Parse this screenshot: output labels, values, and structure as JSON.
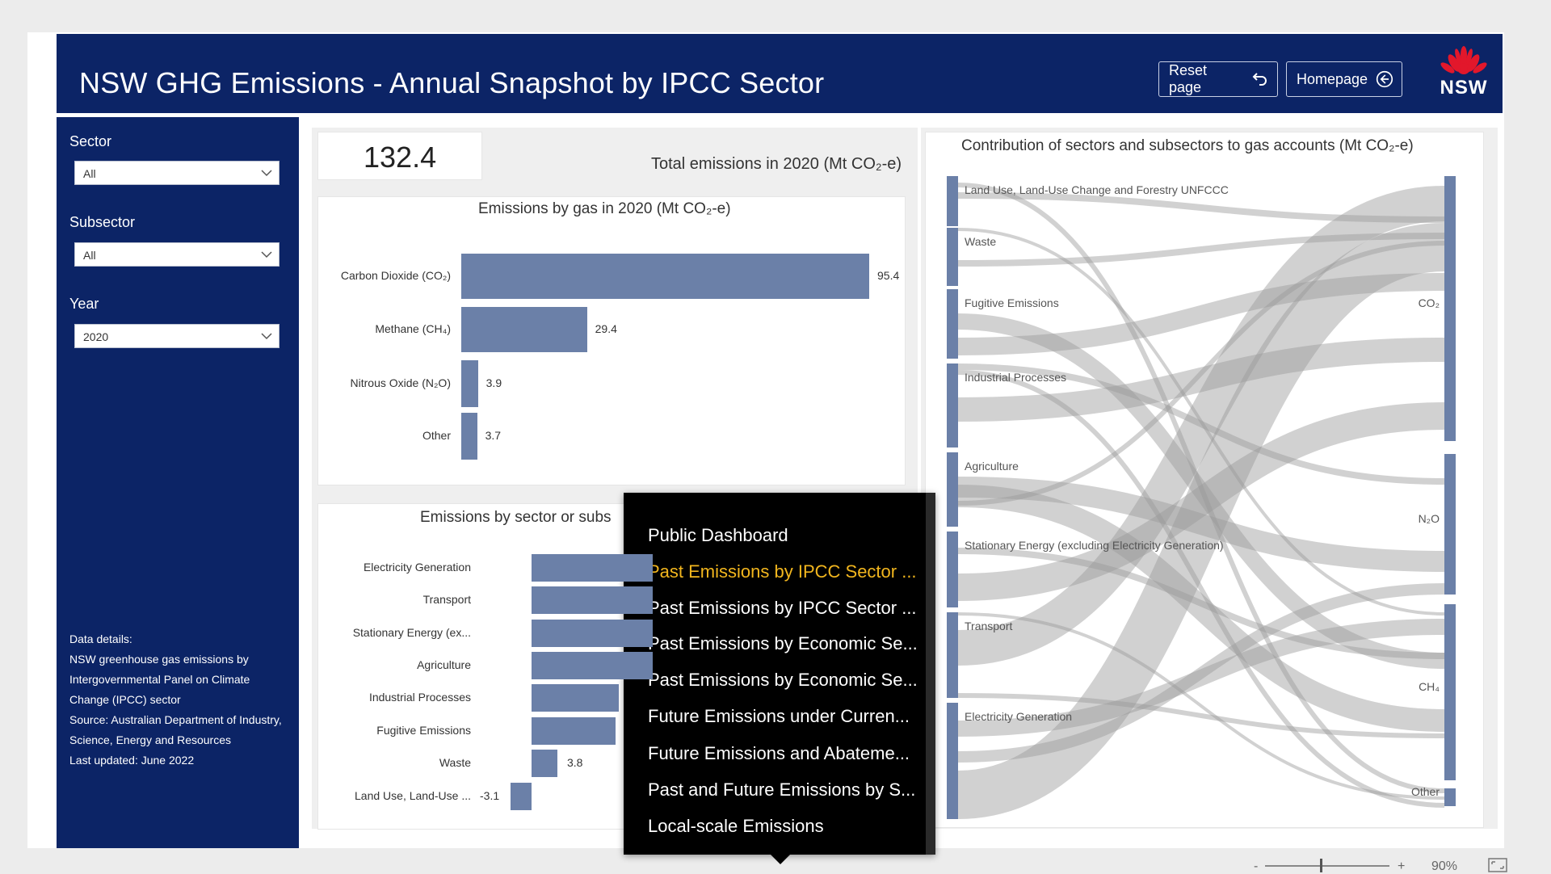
{
  "header": {
    "title": "NSW GHG Emissions - Annual Snapshot by IPCC Sector",
    "reset_label": "Reset page",
    "home_label": "Homepage",
    "logo_text": "NSW"
  },
  "filters": {
    "sector": {
      "label": "Sector",
      "value": "All"
    },
    "subsector": {
      "label": "Subsector",
      "value": "All"
    },
    "year": {
      "label": "Year",
      "value": "2020"
    }
  },
  "details": {
    "heading": "Data details:",
    "line1": "NSW greenhouse gas emissions by Intergovernmental Panel on Climate Change (IPCC) sector",
    "line2": "Source: Australian Department of Industry, Science, Energy and Resources",
    "line3": "Last updated: June 2022"
  },
  "kpi": {
    "value": "132.4",
    "label": "Total emissions in 2020 (Mt CO₂-e)"
  },
  "chart_data": [
    {
      "type": "bar",
      "title": "Emissions by gas in 2020 (Mt CO₂-e)",
      "categories": [
        "Carbon Dioxide (CO₂)",
        "Methane (CH₄)",
        "Nitrous Oxide (N₂O)",
        "Other"
      ],
      "values": [
        95.4,
        29.4,
        3.9,
        3.7
      ],
      "value_labels": [
        "95.4",
        "29.4",
        "3.9",
        "3.7"
      ]
    },
    {
      "type": "bar",
      "title": "Emissions by sector or subs",
      "categories": [
        "Electricity Generation",
        "Transport",
        "Stationary Energy (ex...",
        "Agriculture",
        "Industrial Processes",
        "Fugitive Emissions",
        "Waste",
        "Land Use, Land-Use ..."
      ],
      "visible_value_labels": {
        "Waste": "3.8",
        "Land Use, Land-Use ...": "-3.1"
      },
      "values_partially_hidden": true
    },
    {
      "type": "sankey",
      "title": "Contribution of sectors and subsectors to gas accounts (Mt CO₂-e)",
      "sources": [
        "Land Use, Land-Use Change and Forestry UNFCCC",
        "Waste",
        "Fugitive Emissions",
        "Industrial Processes",
        "Agriculture",
        "Stationary Energy (excluding Electricity Generation)",
        "Transport",
        "Electricity Generation"
      ],
      "targets": [
        "CO₂",
        "N₂O",
        "CH₄",
        "Other"
      ]
    }
  ],
  "menu": {
    "items": [
      {
        "label": "Public Dashboard",
        "active": false
      },
      {
        "label": "Past Emissions by IPCC Sector ...",
        "active": true
      },
      {
        "label": "Past Emissions by IPCC Sector ...",
        "active": false
      },
      {
        "label": "Past Emissions by Economic Se...",
        "active": false
      },
      {
        "label": "Past Emissions by Economic Se...",
        "active": false
      },
      {
        "label": "Future Emissions under Curren...",
        "active": false
      },
      {
        "label": "Future Emissions and Abateme...",
        "active": false
      },
      {
        "label": "Past and Future Emissions by S...",
        "active": false
      },
      {
        "label": "Local-scale Emissions",
        "active": false
      }
    ]
  },
  "zoom": {
    "minus": "-",
    "plus": "+",
    "level": "90%"
  },
  "colors": {
    "navy": "#0c2466",
    "bar": "#6b80a8",
    "active_menu": "#f2b61e"
  }
}
